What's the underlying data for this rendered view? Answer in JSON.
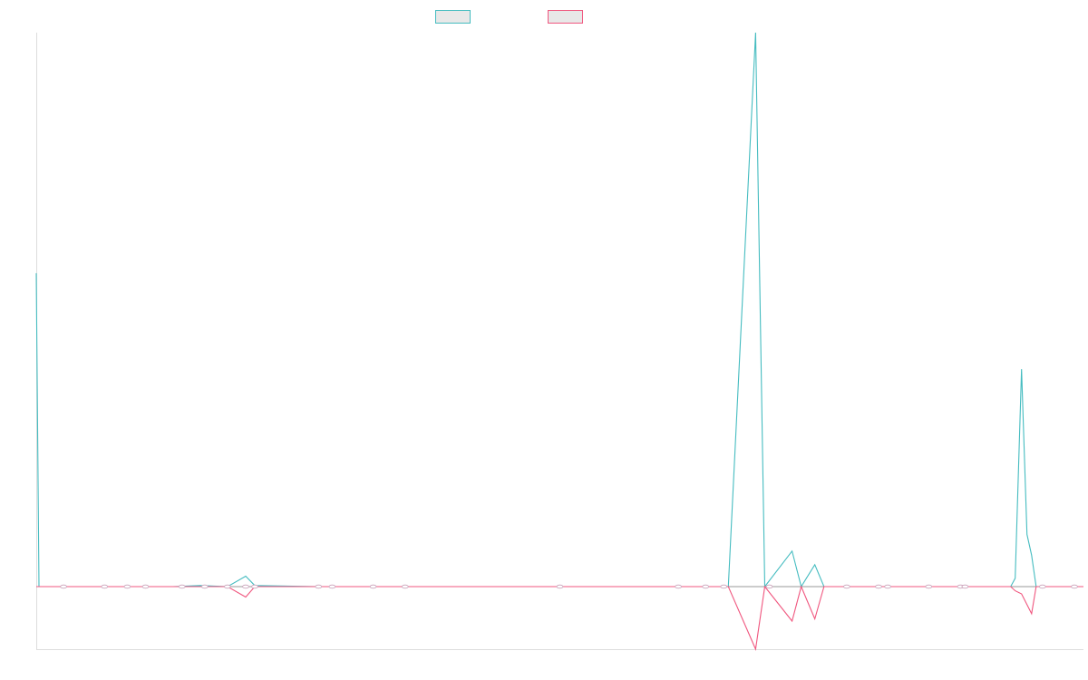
{
  "chart_data": {
    "type": "line",
    "title": "",
    "xlabel": "",
    "ylabel": "",
    "grid": false,
    "legend_placement": "top",
    "x_count": 115,
    "ylim": [
      -6,
      53
    ],
    "zero_line": true,
    "series": [
      {
        "name": "",
        "color": "#45bcc0",
        "points": [
          [
            0,
            30
          ],
          [
            0.3,
            0
          ],
          [
            3,
            0
          ],
          [
            7,
            0
          ],
          [
            9,
            0
          ],
          [
            11,
            0
          ],
          [
            15,
            0
          ],
          [
            18,
            0.1
          ],
          [
            21,
            0
          ],
          [
            23,
            1.0
          ],
          [
            24,
            0.1
          ],
          [
            31,
            0
          ],
          [
            33,
            0
          ],
          [
            37,
            0
          ],
          [
            41,
            0
          ],
          [
            58,
            0
          ],
          [
            71,
            0
          ],
          [
            74,
            0
          ],
          [
            76,
            0
          ],
          [
            79,
            53
          ],
          [
            80,
            0
          ],
          [
            83,
            3.4
          ],
          [
            84,
            0
          ],
          [
            85.5,
            2.1
          ],
          [
            86.5,
            0
          ],
          [
            89,
            0
          ],
          [
            93,
            0
          ],
          [
            94,
            0
          ],
          [
            97,
            0
          ],
          [
            101,
            0
          ],
          [
            107,
            0
          ],
          [
            107.5,
            0.8
          ],
          [
            108.2,
            20.8
          ],
          [
            108.8,
            5
          ],
          [
            109.3,
            3
          ],
          [
            109.8,
            0
          ],
          [
            112,
            0
          ],
          [
            114,
            0
          ],
          [
            115,
            0
          ]
        ]
      },
      {
        "name": "",
        "color": "#f0577f",
        "points": [
          [
            0,
            0
          ],
          [
            0.3,
            0
          ],
          [
            3,
            0
          ],
          [
            7,
            0
          ],
          [
            9,
            0
          ],
          [
            11,
            0
          ],
          [
            15,
            0
          ],
          [
            18,
            0
          ],
          [
            21,
            0
          ],
          [
            23,
            -1.0
          ],
          [
            24,
            0
          ],
          [
            31,
            0
          ],
          [
            33,
            0
          ],
          [
            37,
            0
          ],
          [
            41,
            0
          ],
          [
            58,
            0
          ],
          [
            71,
            0
          ],
          [
            74,
            0
          ],
          [
            76,
            0
          ],
          [
            79,
            -6
          ],
          [
            80,
            0
          ],
          [
            83,
            -3.3
          ],
          [
            84,
            0
          ],
          [
            85.5,
            -3.1
          ],
          [
            86.5,
            0
          ],
          [
            89,
            0
          ],
          [
            93,
            0
          ],
          [
            94,
            0
          ],
          [
            97,
            0
          ],
          [
            101,
            0
          ],
          [
            107,
            0
          ],
          [
            107.5,
            -0.4
          ],
          [
            108.2,
            -0.7
          ],
          [
            109.3,
            -2.6
          ],
          [
            109.8,
            0
          ],
          [
            112,
            0
          ],
          [
            114,
            0
          ],
          [
            115,
            0
          ]
        ]
      }
    ],
    "markers_x": [
      3,
      7.5,
      10,
      12,
      16,
      18.5,
      21,
      23,
      24,
      31,
      32.5,
      37,
      40.5,
      57.5,
      70.5,
      73.5,
      75.5,
      80.5,
      89,
      92.5,
      93.5,
      98,
      101.5,
      102,
      110.5,
      114
    ]
  }
}
